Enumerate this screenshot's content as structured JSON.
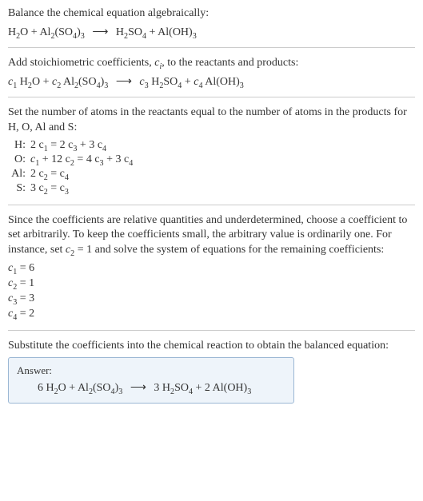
{
  "background_color": "#ffffff",
  "text_color": "#333333",
  "rule_color": "#cccccc",
  "answer_box_bg": "#eef4fa",
  "answer_box_border": "#9bb7d4",
  "font_family": "Georgia, 'Times New Roman', serif",
  "base_fontsize_pt": 11,
  "header": {
    "lead": "Balance the chemical equation algebraically:",
    "equation": {
      "lhs": [
        {
          "formula": "H",
          "sub": "2",
          "tail": "O"
        },
        {
          "plus": "+"
        },
        {
          "formula": "Al",
          "sub": "2",
          "tail": "(SO",
          "sub2": "4",
          "tail2": ")",
          "sub3": "3"
        }
      ],
      "arrow": "⟶",
      "rhs": [
        {
          "formula": "H",
          "sub": "2",
          "tail": "SO",
          "sub2": "4"
        },
        {
          "plus": "+"
        },
        {
          "formula": "Al(OH)",
          "sub": "3"
        }
      ]
    }
  },
  "section_add": {
    "text_pre": "Add stoichiometric coefficients, ",
    "var": "c",
    "var_sub": "i",
    "text_post": ", to the reactants and products:",
    "equation": {
      "lhs": [
        {
          "coef": "c",
          "coef_sub": "1",
          "formula": " H",
          "sub": "2",
          "tail": "O"
        },
        {
          "plus": "+"
        },
        {
          "coef": "c",
          "coef_sub": "2",
          "formula": " Al",
          "sub": "2",
          "tail": "(SO",
          "sub2": "4",
          "tail2": ")",
          "sub3": "3"
        }
      ],
      "arrow": "⟶",
      "rhs": [
        {
          "coef": "c",
          "coef_sub": "3",
          "formula": " H",
          "sub": "2",
          "tail": "SO",
          "sub2": "4"
        },
        {
          "plus": "+"
        },
        {
          "coef": "c",
          "coef_sub": "4",
          "formula": " Al(OH)",
          "sub": "3"
        }
      ]
    }
  },
  "section_atoms": {
    "text": "Set the number of atoms in the reactants equal to the number of atoms in the products for H, O, Al and S:",
    "rows": [
      {
        "sym": "H:",
        "eq_lhs": "2 c",
        "s1": "1",
        "eq_mid": " = 2 c",
        "s2": "3",
        "eq_mid2": " + 3 c",
        "s3": "4"
      },
      {
        "sym": "O:",
        "eq_lhs": "c",
        "s1": "1",
        "eq_mid": " + 12 c",
        "s2": "2",
        "eq_mid2": " = 4 c",
        "s3": "3",
        "eq_mid3": " + 3 c",
        "s4": "4"
      },
      {
        "sym": "Al:",
        "eq_lhs": "2 c",
        "s1": "2",
        "eq_mid": " = c",
        "s2": "4"
      },
      {
        "sym": "S:",
        "eq_lhs": "3 c",
        "s1": "2",
        "eq_mid": " = c",
        "s2": "3"
      }
    ]
  },
  "section_choose": {
    "text_pre": "Since the coefficients are relative quantities and underdetermined, choose a coefficient to set arbitrarily. To keep the coefficients small, the arbitrary value is ordinarily one. For instance, set ",
    "var": "c",
    "var_sub": "2",
    "text_mid": " = 1 and solve the system of equations for the remaining coefficients:",
    "coeffs": [
      {
        "c": "c",
        "sub": "1",
        "eq": " = 6"
      },
      {
        "c": "c",
        "sub": "2",
        "eq": " = 1"
      },
      {
        "c": "c",
        "sub": "3",
        "eq": " = 3"
      },
      {
        "c": "c",
        "sub": "4",
        "eq": " = 2"
      }
    ]
  },
  "section_subst": {
    "text": "Substitute the coefficients into the chemical reaction to obtain the balanced equation:"
  },
  "answer": {
    "label": "Answer:",
    "equation": {
      "lhs": [
        {
          "num": "6 ",
          "formula": "H",
          "sub": "2",
          "tail": "O"
        },
        {
          "plus": "+"
        },
        {
          "formula": "Al",
          "sub": "2",
          "tail": "(SO",
          "sub2": "4",
          "tail2": ")",
          "sub3": "3"
        }
      ],
      "arrow": "⟶",
      "rhs": [
        {
          "num": "3 ",
          "formula": "H",
          "sub": "2",
          "tail": "SO",
          "sub2": "4"
        },
        {
          "plus": "+"
        },
        {
          "num": "2 ",
          "formula": "Al(OH)",
          "sub": "3"
        }
      ]
    }
  }
}
